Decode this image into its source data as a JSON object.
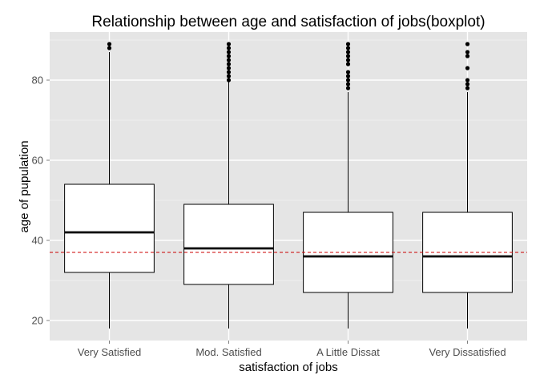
{
  "chart_data": {
    "type": "boxplot",
    "title": "Relationship between age and satisfaction of jobs(boxplot)",
    "xlabel": "satisfaction of jobs",
    "ylabel": "age of pupulation",
    "categories": [
      "Very Satisfied",
      "Mod. Satisfied",
      "A Little Dissat",
      "Very Dissatisfied"
    ],
    "ylim": [
      15,
      92
    ],
    "yticks": [
      20,
      40,
      60,
      80
    ],
    "boxes": [
      {
        "category": "Very Satisfied",
        "whisker_low": 18,
        "q1": 32,
        "median": 42,
        "q3": 54,
        "whisker_high": 87,
        "outliers": [
          88,
          89
        ]
      },
      {
        "category": "Mod. Satisfied",
        "whisker_low": 18,
        "q1": 29,
        "median": 38,
        "q3": 49,
        "whisker_high": 80,
        "outliers": [
          80,
          81,
          82,
          83,
          84,
          85,
          86,
          87,
          88,
          89
        ]
      },
      {
        "category": "A Little Dissat",
        "whisker_low": 18,
        "q1": 27,
        "median": 36,
        "q3": 47,
        "whisker_high": 77,
        "outliers": [
          78,
          79,
          80,
          81,
          82,
          84,
          85,
          86,
          87,
          88,
          89
        ]
      },
      {
        "category": "Very Dissatisfied",
        "whisker_low": 18,
        "q1": 27,
        "median": 36,
        "q3": 47,
        "whisker_high": 77,
        "outliers": [
          78,
          79,
          80,
          83,
          86,
          87,
          89
        ]
      }
    ],
    "reference_line": {
      "y": 37,
      "style": "dashed",
      "color": "#cc0000"
    },
    "grid": true,
    "colors": {
      "panel_background": "#e5e5e5",
      "gridline": "#ffffff",
      "box_fill": "#ffffff",
      "outline": "#000000"
    }
  }
}
